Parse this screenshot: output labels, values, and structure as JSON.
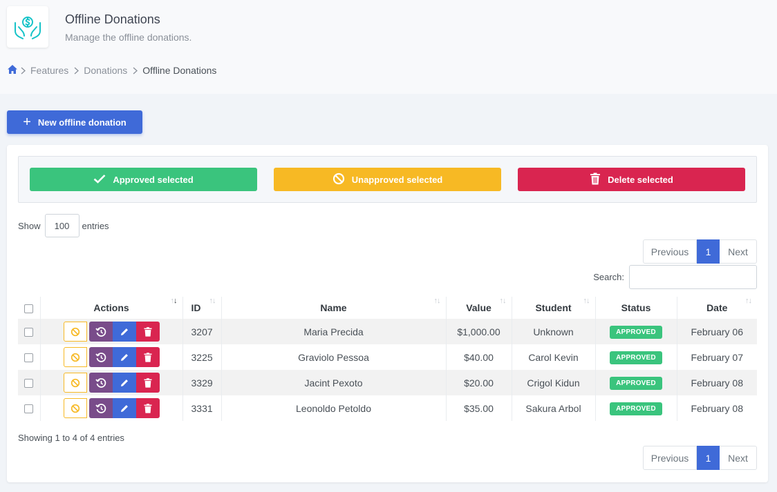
{
  "header": {
    "title": "Offline Donations",
    "subtitle": "Manage the offline donations."
  },
  "breadcrumb": {
    "items": [
      "Features",
      "Donations",
      "Offline Donations"
    ]
  },
  "toolbar": {
    "new_label": "New offline donation"
  },
  "bulk": {
    "approve_label": "Approved selected",
    "unapprove_label": "Unapproved selected",
    "delete_label": "Delete selected"
  },
  "length": {
    "show_label": "Show",
    "value": "100",
    "entries_label": "entries"
  },
  "pagination": {
    "previous": "Previous",
    "page": "1",
    "next": "Next"
  },
  "search": {
    "label": "Search:",
    "value": ""
  },
  "table": {
    "columns": [
      "Actions",
      "ID",
      "Name",
      "Value",
      "Student",
      "Status",
      "Date"
    ],
    "rows": [
      {
        "id": "3207",
        "name": "Maria Precida",
        "value": "$1,000.00",
        "student": "Unknown",
        "status": "APPROVED",
        "date": "February 06"
      },
      {
        "id": "3225",
        "name": "Graviolo Pessoa",
        "value": "$40.00",
        "student": "Carol Kevin",
        "status": "APPROVED",
        "date": "February 07"
      },
      {
        "id": "3329",
        "name": "Jacint Pexoto",
        "value": "$20.00",
        "student": "Crigol Kidun",
        "status": "APPROVED",
        "date": "February 08"
      },
      {
        "id": "3331",
        "name": "Leonoldo Petoldo",
        "value": "$35.00",
        "student": "Sakura Arbol",
        "status": "APPROVED",
        "date": "February 08"
      }
    ]
  },
  "footer": {
    "info": "Showing 1 to 4 of 4 entries"
  },
  "colors": {
    "primary": "#3f6ad8",
    "success": "#3ac47d",
    "warning": "#f7b924",
    "danger": "#d92550",
    "alternate": "#794c8a",
    "icon_teal": "#16c3c8"
  },
  "icons": {
    "page": "hands-dollar-icon",
    "home": "home-icon",
    "approve": "check-icon",
    "unapprove": "ban-icon",
    "delete": "trash-icon",
    "history": "history-icon",
    "edit": "pencil-icon"
  }
}
